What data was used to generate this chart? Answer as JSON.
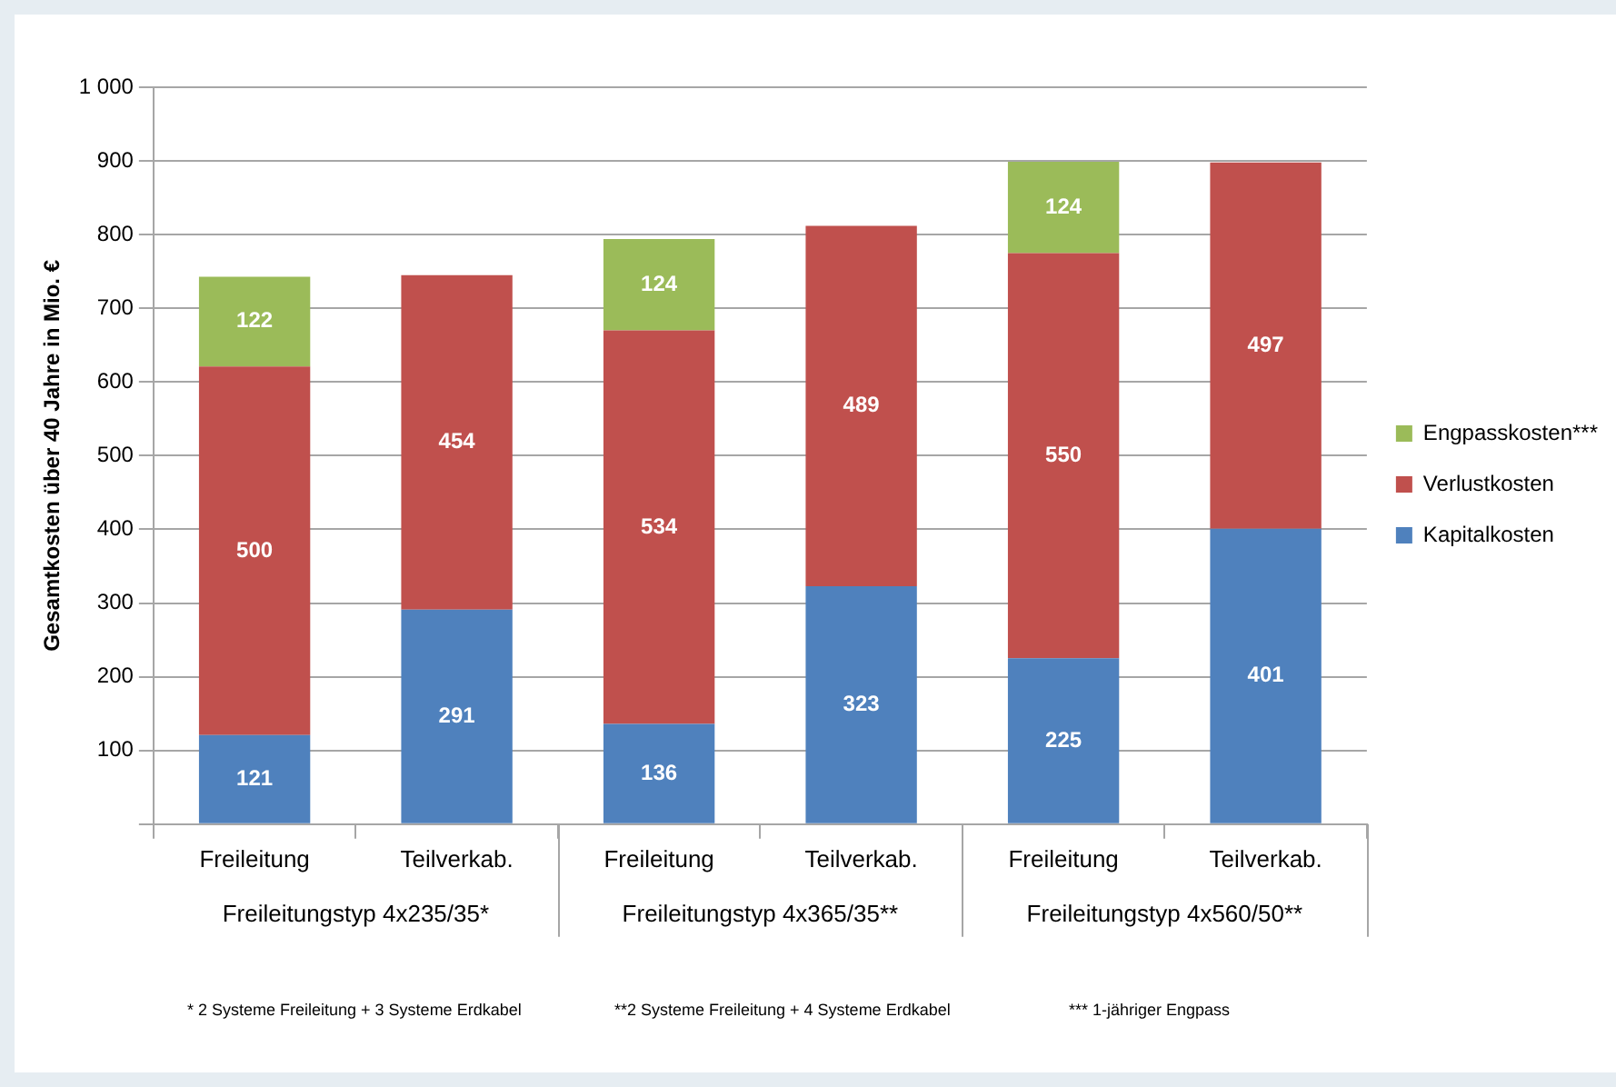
{
  "chart_data": {
    "type": "bar",
    "stacked": true,
    "ylabel": "Gesamtkosten über 40 Jahre in Mio. €",
    "categories": [
      "Freileitung",
      "Teilverkab.",
      "Freileitung",
      "Teilverkab.",
      "Freileitung",
      "Teilverkab."
    ],
    "series": [
      {
        "name": "Kapitalkosten",
        "color": "#4f81bd",
        "values": [
          121,
          291,
          136,
          323,
          225,
          401
        ]
      },
      {
        "name": "Verlustkosten",
        "color": "#c0504d",
        "values": [
          500,
          454,
          534,
          489,
          550,
          497
        ]
      },
      {
        "name": "Engpasskosten***",
        "color": "#9bbb59",
        "values": [
          122,
          null,
          124,
          null,
          124,
          null
        ]
      }
    ],
    "ylim": [
      0,
      1000
    ],
    "yticks": [
      {
        "value": 0,
        "label": null
      },
      100,
      200,
      300,
      400,
      500,
      600,
      700,
      800,
      900,
      {
        "value": 1000,
        "label": "1 000"
      }
    ],
    "grid": "y",
    "legend": "right",
    "data_labels": true,
    "annotations": [
      "Freileitungstyp 4x235/35*",
      "Freileitungstyp 4x365/35**",
      "Freileitungstyp 4x560/50**",
      "* 2 Systeme Freileitung + 3 Systeme Erdkabel",
      "**2 Systeme Freileitung + 4 Systeme Erdkabel",
      "*** 1-jähriger Engpass"
    ]
  }
}
